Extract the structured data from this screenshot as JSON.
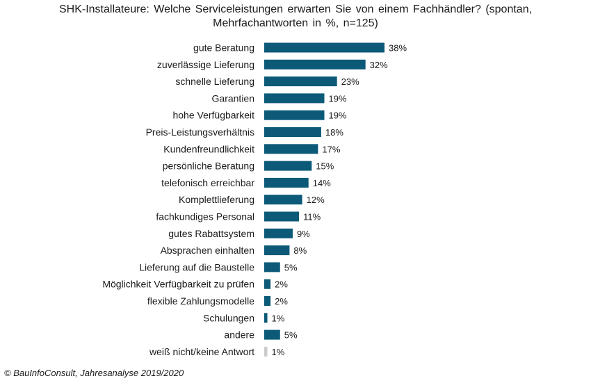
{
  "title_line1": "SHK-Installateure:  Welche Serviceleistungen  erwarten  Sie von einem  Fachhändler? (spontan,",
  "title_line2": "Mehrfachantworten  in %, n=125)",
  "source": "© BauInfoConsult, Jahresanalyse 2019/2020",
  "colors": {
    "bar": "#0c5a78",
    "bar_muted": "#cccccc"
  },
  "chart_data": {
    "type": "bar",
    "orientation": "horizontal",
    "title": "SHK-Installateure: Welche Serviceleistungen erwarten Sie von einem Fachhändler? (spontan, Mehrfachantworten in %, n=125)",
    "categories": [
      "gute Beratung",
      "zuverlässige Lieferung",
      "schnelle Lieferung",
      "Garantien",
      "hohe Verfügbarkeit",
      "Preis-Leistungsverhältnis",
      "Kundenfreundlichkeit",
      "persönliche Beratung",
      "telefonisch erreichbar",
      "Komplettlieferung",
      "fachkundiges Personal",
      "gutes Rabattsystem",
      "Absprachen einhalten",
      "Lieferung auf die Baustelle",
      "Möglichkeit Verfügbarkeit zu prüfen",
      "flexible Zahlungsmodelle",
      "Schulungen",
      "andere",
      "weiß nicht/keine Antwort"
    ],
    "values": [
      38,
      32,
      23,
      19,
      19,
      18,
      17,
      15,
      14,
      12,
      11,
      9,
      8,
      5,
      2,
      2,
      1,
      5,
      1
    ],
    "value_labels": [
      "38%",
      "32%",
      "23%",
      "19%",
      "19%",
      "18%",
      "17%",
      "15%",
      "14%",
      "12%",
      "11%",
      "9%",
      "8%",
      "5%",
      "2%",
      "2%",
      "1%",
      "5%",
      "1%"
    ],
    "muted": [
      false,
      false,
      false,
      false,
      false,
      false,
      false,
      false,
      false,
      false,
      false,
      false,
      false,
      false,
      false,
      false,
      false,
      false,
      true
    ],
    "xlim": [
      0,
      38
    ],
    "grid": false,
    "legend": "none"
  }
}
